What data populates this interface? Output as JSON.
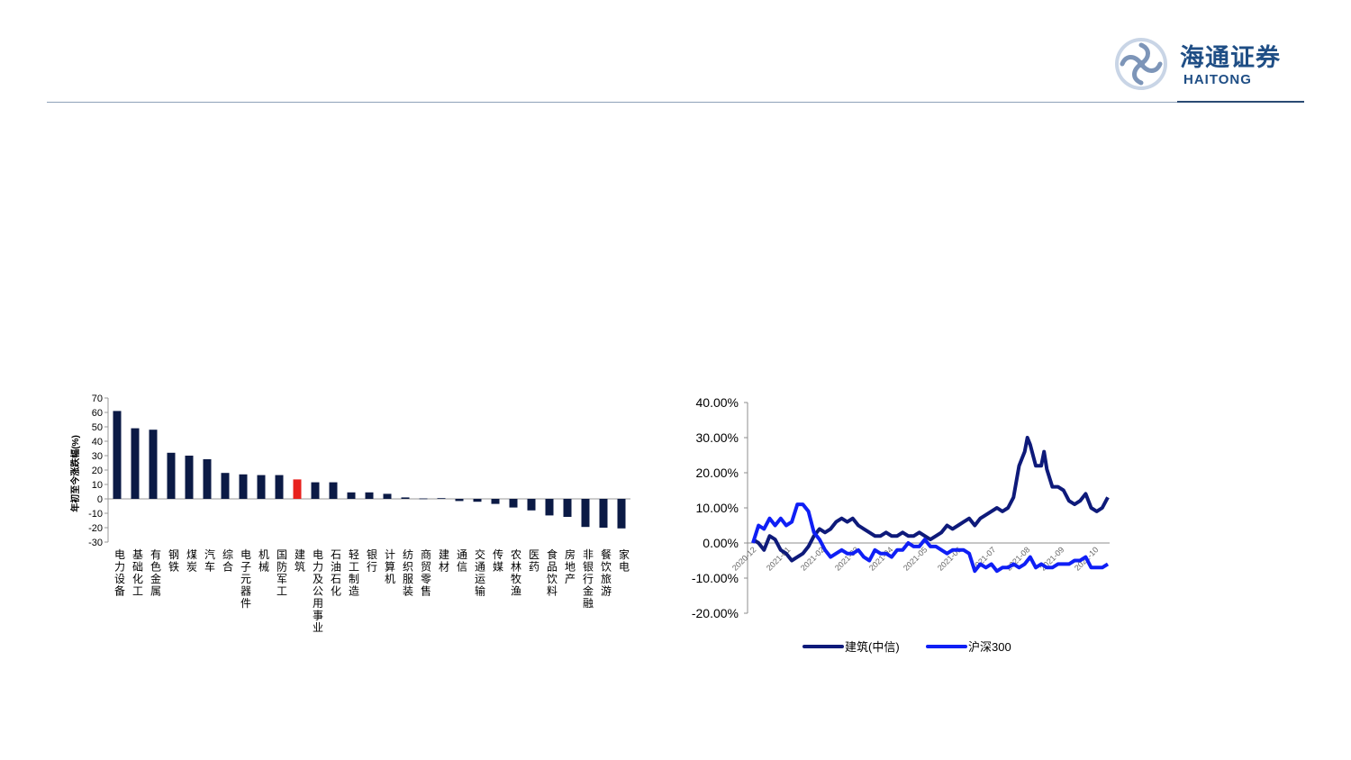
{
  "logo": {
    "name_cn": "海通证券",
    "name_en": "HAITONG"
  },
  "chart_data": [
    {
      "type": "bar",
      "title": "",
      "ylabel": "年初至今涨跌幅(%)",
      "xlabel": "",
      "ylim": [
        -30,
        70
      ],
      "yticks": [
        -30,
        -20,
        -10,
        0,
        10,
        20,
        30,
        40,
        50,
        60,
        70
      ],
      "categories": [
        "电力设备",
        "基础化工",
        "有色金属",
        "钢铁",
        "煤炭",
        "汽车",
        "综合",
        "电子元器件",
        "机械",
        "国防军工",
        "建筑",
        "电力及公用事业",
        "石油石化",
        "轻工制造",
        "银行",
        "计算机",
        "纺织服装",
        "商贸零售",
        "建材",
        "通信",
        "交通运输",
        "传媒",
        "农林牧渔",
        "医药",
        "食品饮料",
        "房地产",
        "非银行金融",
        "餐饮旅游",
        "家电"
      ],
      "values": [
        61,
        49,
        48,
        32,
        30,
        27.5,
        18,
        17,
        16.5,
        16.5,
        13.5,
        11.5,
        11.5,
        4.5,
        4.5,
        3.5,
        1,
        0.3,
        0.5,
        -1.5,
        -2,
        -3.5,
        -6,
        -8,
        -11.5,
        -12.5,
        -19.5,
        -20,
        -20.5
      ],
      "highlight_category": "建筑",
      "colors": {
        "bar": "#0b1a45",
        "highlight": "#e8211d"
      }
    },
    {
      "type": "line",
      "title": "",
      "xlabel": "",
      "ylabel": "",
      "ylim": [
        -0.2,
        0.4
      ],
      "yticks": [
        "-20.00%",
        "-10.00%",
        "0.00%",
        "10.00%",
        "20.00%",
        "30.00%",
        "40.00%"
      ],
      "xticks": [
        "2020-12",
        "2021-01",
        "2021-02",
        "2021-03",
        "2021-04",
        "2021-05",
        "2021-06",
        "2021-07",
        "2021-08",
        "2021-09",
        "2021-10"
      ],
      "legend_position": "bottom",
      "series": [
        {
          "name": "建筑(中信)",
          "color": "#0e1a7a",
          "points": [
            [
              0,
              0.01
            ],
            [
              2,
              0.0
            ],
            [
              4,
              -0.02
            ],
            [
              6,
              0.02
            ],
            [
              8,
              0.01
            ],
            [
              10,
              -0.02
            ],
            [
              12,
              -0.03
            ],
            [
              14,
              -0.05
            ],
            [
              16,
              -0.04
            ],
            [
              18,
              -0.03
            ],
            [
              20,
              -0.01
            ],
            [
              22,
              0.02
            ],
            [
              24,
              0.04
            ],
            [
              26,
              0.03
            ],
            [
              28,
              0.04
            ],
            [
              30,
              0.06
            ],
            [
              32,
              0.07
            ],
            [
              34,
              0.06
            ],
            [
              36,
              0.07
            ],
            [
              38,
              0.05
            ],
            [
              40,
              0.04
            ],
            [
              42,
              0.03
            ],
            [
              44,
              0.02
            ],
            [
              46,
              0.02
            ],
            [
              48,
              0.03
            ],
            [
              50,
              0.02
            ],
            [
              52,
              0.02
            ],
            [
              54,
              0.03
            ],
            [
              56,
              0.02
            ],
            [
              58,
              0.02
            ],
            [
              60,
              0.03
            ],
            [
              62,
              0.02
            ],
            [
              64,
              0.01
            ],
            [
              66,
              0.02
            ],
            [
              68,
              0.03
            ],
            [
              70,
              0.05
            ],
            [
              72,
              0.04
            ],
            [
              74,
              0.05
            ],
            [
              76,
              0.06
            ],
            [
              78,
              0.07
            ],
            [
              80,
              0.05
            ],
            [
              82,
              0.07
            ],
            [
              84,
              0.08
            ],
            [
              86,
              0.09
            ],
            [
              88,
              0.1
            ],
            [
              90,
              0.09
            ],
            [
              92,
              0.1
            ],
            [
              94,
              0.13
            ],
            [
              96,
              0.22
            ],
            [
              98,
              0.26
            ],
            [
              99,
              0.3
            ],
            [
              100,
              0.28
            ],
            [
              102,
              0.22
            ],
            [
              104,
              0.22
            ],
            [
              105,
              0.26
            ],
            [
              106,
              0.21
            ],
            [
              108,
              0.16
            ],
            [
              110,
              0.16
            ],
            [
              112,
              0.15
            ],
            [
              114,
              0.12
            ],
            [
              116,
              0.11
            ],
            [
              118,
              0.12
            ],
            [
              120,
              0.14
            ],
            [
              122,
              0.1
            ],
            [
              124,
              0.09
            ],
            [
              126,
              0.1
            ],
            [
              128,
              0.13
            ]
          ]
        },
        {
          "name": "沪深300",
          "color": "#0f1ff5",
          "points": [
            [
              0,
              0.0
            ],
            [
              2,
              0.05
            ],
            [
              4,
              0.04
            ],
            [
              6,
              0.07
            ],
            [
              8,
              0.05
            ],
            [
              10,
              0.07
            ],
            [
              12,
              0.05
            ],
            [
              14,
              0.06
            ],
            [
              16,
              0.11
            ],
            [
              18,
              0.11
            ],
            [
              20,
              0.09
            ],
            [
              22,
              0.03
            ],
            [
              24,
              0.01
            ],
            [
              26,
              -0.02
            ],
            [
              28,
              -0.04
            ],
            [
              30,
              -0.03
            ],
            [
              32,
              -0.02
            ],
            [
              34,
              -0.03
            ],
            [
              36,
              -0.03
            ],
            [
              38,
              -0.02
            ],
            [
              40,
              -0.04
            ],
            [
              42,
              -0.05
            ],
            [
              44,
              -0.02
            ],
            [
              46,
              -0.03
            ],
            [
              48,
              -0.03
            ],
            [
              50,
              -0.04
            ],
            [
              52,
              -0.02
            ],
            [
              54,
              -0.02
            ],
            [
              56,
              0.0
            ],
            [
              58,
              -0.01
            ],
            [
              60,
              -0.01
            ],
            [
              62,
              0.01
            ],
            [
              64,
              -0.01
            ],
            [
              66,
              -0.01
            ],
            [
              68,
              -0.02
            ],
            [
              70,
              -0.03
            ],
            [
              72,
              -0.02
            ],
            [
              74,
              -0.02
            ],
            [
              76,
              -0.02
            ],
            [
              78,
              -0.03
            ],
            [
              80,
              -0.08
            ],
            [
              82,
              -0.06
            ],
            [
              84,
              -0.07
            ],
            [
              86,
              -0.06
            ],
            [
              88,
              -0.08
            ],
            [
              90,
              -0.07
            ],
            [
              92,
              -0.07
            ],
            [
              94,
              -0.06
            ],
            [
              96,
              -0.07
            ],
            [
              98,
              -0.06
            ],
            [
              100,
              -0.04
            ],
            [
              102,
              -0.07
            ],
            [
              104,
              -0.06
            ],
            [
              106,
              -0.07
            ],
            [
              108,
              -0.07
            ],
            [
              110,
              -0.06
            ],
            [
              112,
              -0.06
            ],
            [
              114,
              -0.06
            ],
            [
              116,
              -0.05
            ],
            [
              118,
              -0.05
            ],
            [
              120,
              -0.04
            ],
            [
              122,
              -0.07
            ],
            [
              124,
              -0.07
            ],
            [
              126,
              -0.07
            ],
            [
              128,
              -0.06
            ]
          ]
        }
      ]
    }
  ]
}
